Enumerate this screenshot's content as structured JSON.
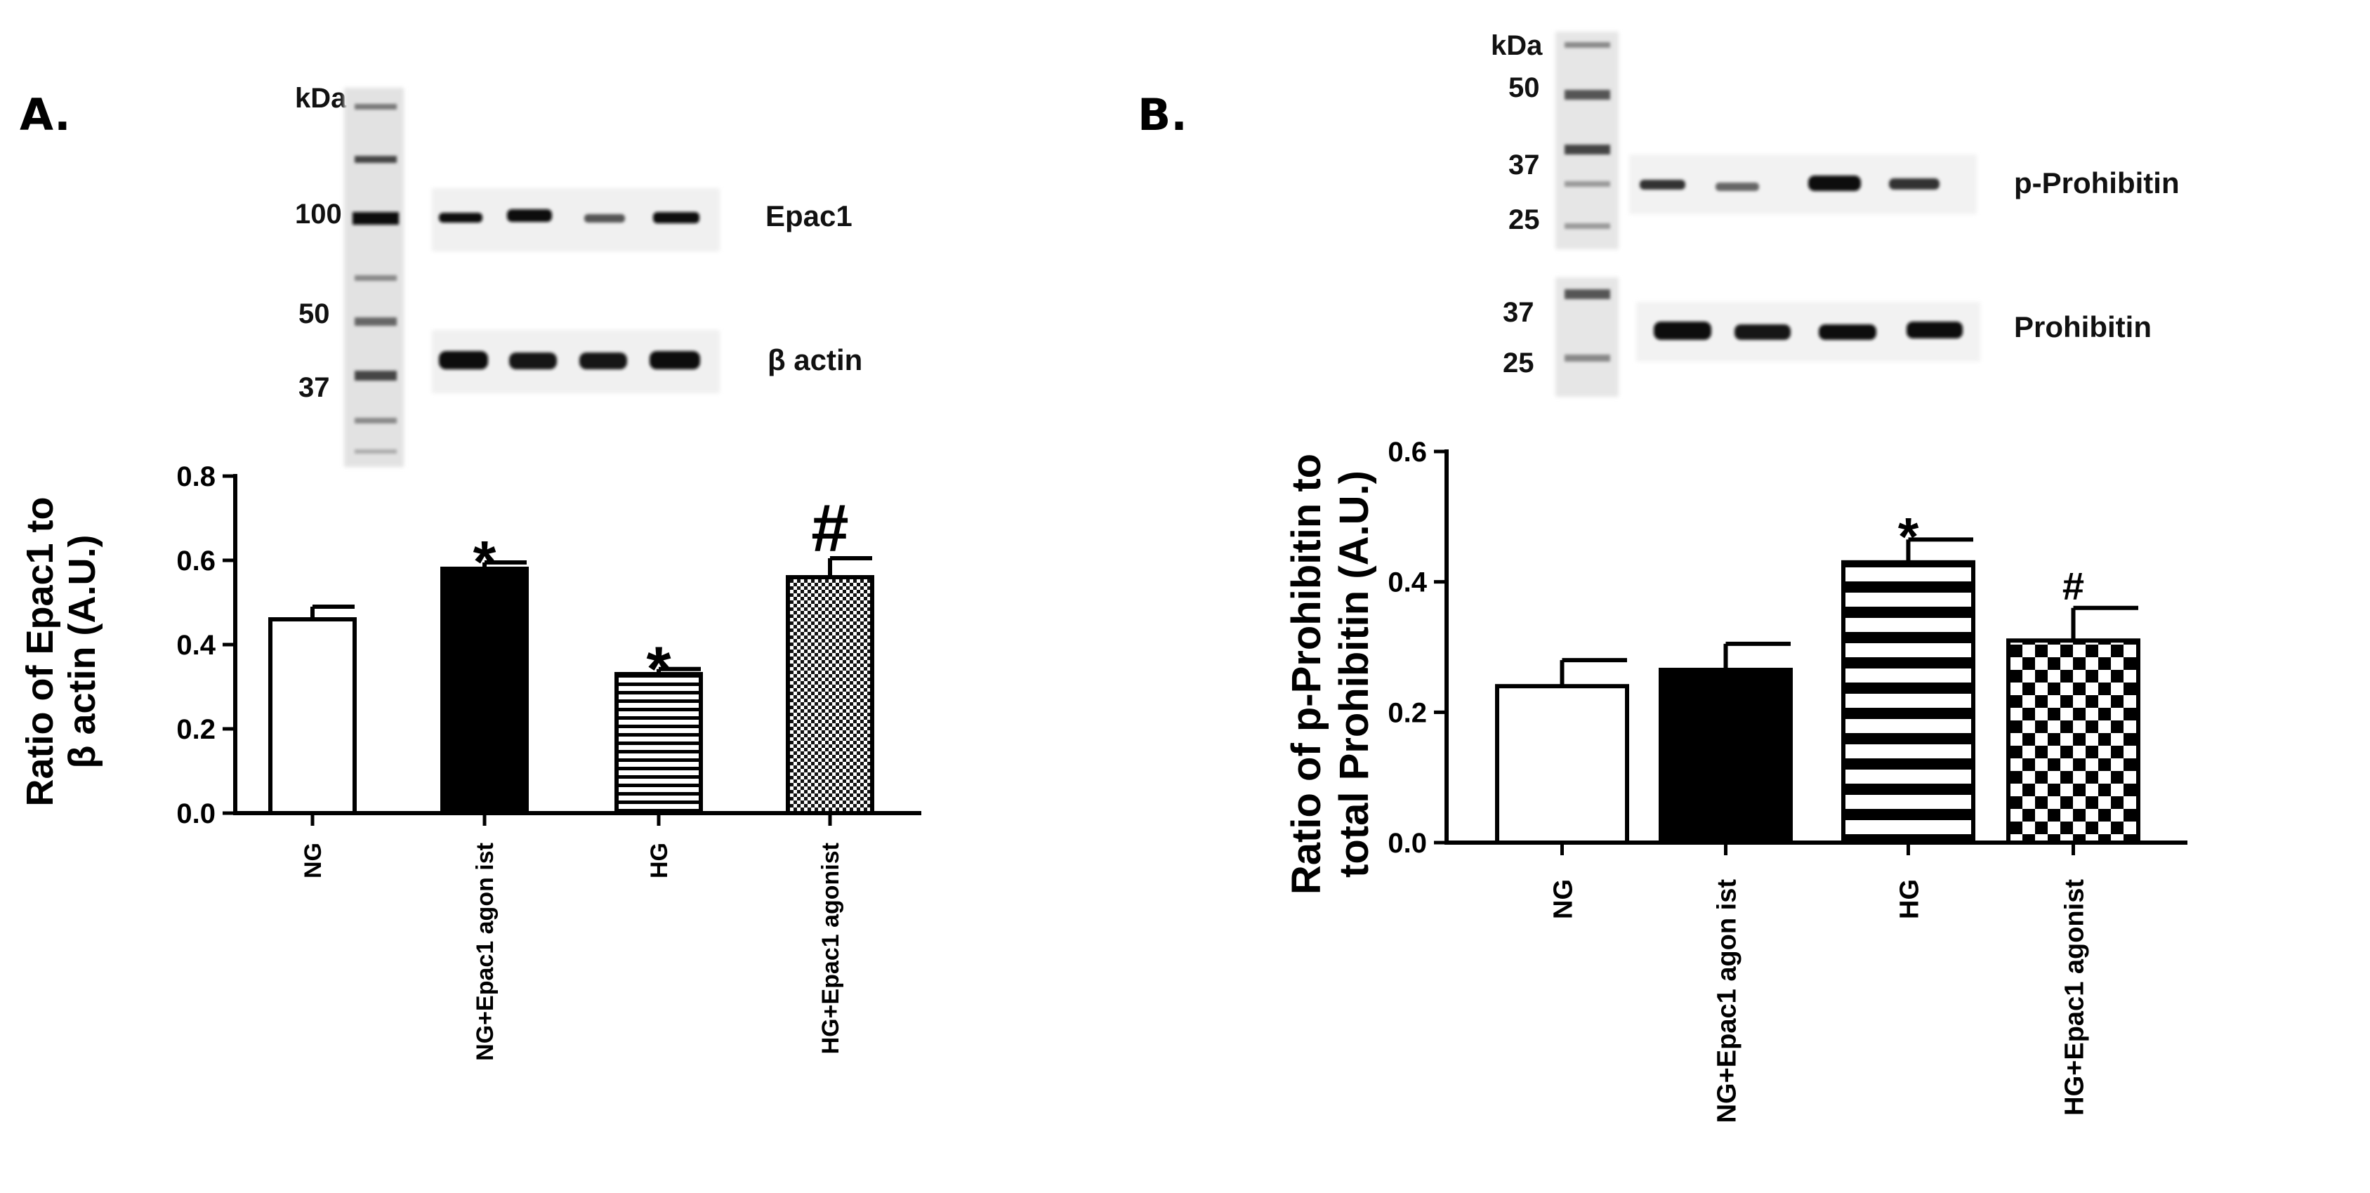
{
  "panels": {
    "a": {
      "letter": "A.",
      "kda_label": "kDa",
      "markers": [
        "100",
        "50",
        "37"
      ],
      "bands": [
        "Epac1",
        "β actin"
      ]
    },
    "b": {
      "letter": "B.",
      "kda_label": "kDa",
      "markers_top": [
        "50",
        "37",
        "25"
      ],
      "markers_bottom": [
        "37",
        "25"
      ],
      "bands": [
        "p-Prohibitin",
        "Prohibitin"
      ]
    }
  },
  "chart_data": [
    {
      "type": "bar",
      "panel": "A.",
      "categories": [
        "NG",
        "NG+Epac1 agon ist",
        "HG",
        "HG+Epac1 agonist"
      ],
      "values": [
        0.46,
        0.58,
        0.33,
        0.56
      ],
      "errors": [
        0.03,
        0.015,
        0.012,
        0.045
      ],
      "significance": [
        "",
        "*",
        "*",
        "#"
      ],
      "fills": [
        "white",
        "black",
        "horizontal-stripes",
        "fine-checker"
      ],
      "ylabel_lines": [
        "Ratio of  Epac1 to",
        "β actin (A.U.)"
      ],
      "xlabel": "",
      "yticks": [
        "0.0",
        "0.2",
        "0.4",
        "0.6",
        "0.8"
      ],
      "ylim": [
        0,
        0.8
      ]
    },
    {
      "type": "bar",
      "panel": "B.",
      "categories": [
        "NG",
        "NG+Epac1 agon ist",
        "HG",
        "HG+Epac1 agonist"
      ],
      "values": [
        0.24,
        0.265,
        0.43,
        0.31
      ],
      "errors": [
        0.04,
        0.04,
        0.035,
        0.05
      ],
      "significance": [
        "",
        "",
        "*",
        "#"
      ],
      "fills": [
        "white",
        "black",
        "horizontal-stripes",
        "coarse-checker"
      ],
      "ylabel_lines": [
        "Ratio of p-Prohibitin to",
        "total Prohibitin (A.U.)"
      ],
      "xlabel": "",
      "yticks": [
        "0.0",
        "0.2",
        "0.4",
        "0.6"
      ],
      "ylim": [
        0,
        0.6
      ]
    }
  ]
}
